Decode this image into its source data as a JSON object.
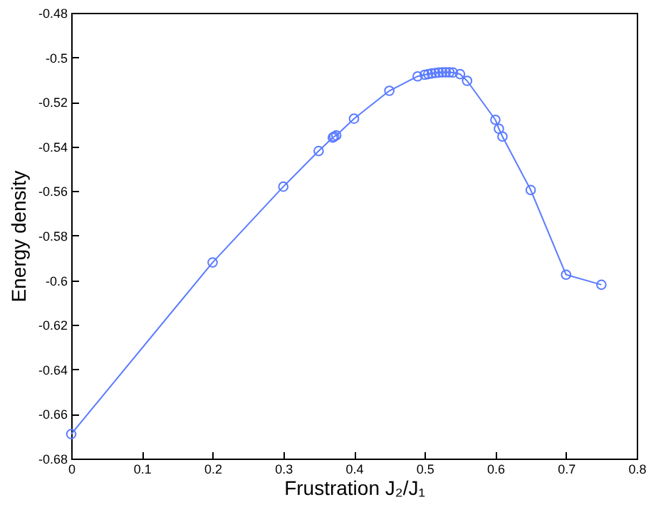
{
  "chart_data": {
    "type": "line",
    "xlabel": "Frustration J₂/J₁",
    "ylabel": "Energy density",
    "xlim": [
      0,
      0.8
    ],
    "xticks": [
      0,
      0.1,
      0.2,
      0.3,
      0.4,
      0.5,
      0.6,
      0.7,
      0.8
    ],
    "ylim": [
      -0.68,
      -0.48
    ],
    "yticks": [
      -0.68,
      -0.66,
      -0.64,
      -0.62,
      -0.6,
      -0.58,
      -0.56,
      -0.54,
      -0.52,
      -0.5,
      -0.48
    ],
    "marker": "circle",
    "grid": false,
    "x": [
      0,
      0.2,
      0.3,
      0.35,
      0.37,
      0.372,
      0.375,
      0.4,
      0.45,
      0.49,
      0.5,
      0.505,
      0.51,
      0.515,
      0.52,
      0.525,
      0.53,
      0.535,
      0.54,
      0.55,
      0.56,
      0.6,
      0.605,
      0.61,
      0.65,
      0.7,
      0.75
    ],
    "series": [
      {
        "color": "#5a7bff",
        "values": [
          -0.669,
          -0.592,
          -0.558,
          -0.542,
          -0.536,
          -0.5355,
          -0.535,
          -0.5275,
          -0.515,
          -0.5085,
          -0.5078,
          -0.5075,
          -0.5072,
          -0.507,
          -0.5068,
          -0.5067,
          -0.5067,
          -0.5067,
          -0.5068,
          -0.5075,
          -0.5105,
          -0.528,
          -0.532,
          -0.5355,
          -0.5595,
          -0.5975,
          -0.602
        ]
      }
    ]
  }
}
